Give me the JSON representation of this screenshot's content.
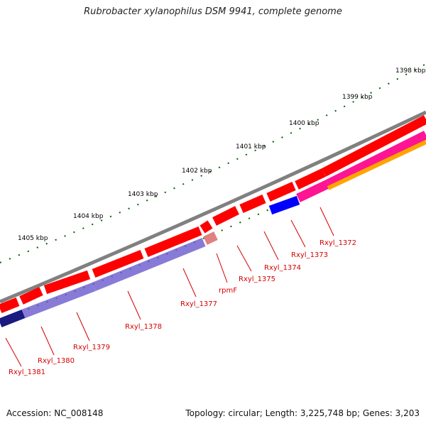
{
  "title": "Rubrobacter xylanophilus DSM 9941, complete genome",
  "accession": "Accession: NC_008148",
  "topology": "Topology: circular; Length: 3,225,748 bp; Genes: 3,203",
  "scale_labels": [
    "1398 kbp",
    "1399 kbp",
    "1400 kbp",
    "1401 kbp",
    "1402 kbp",
    "1403 kbp",
    "1404 kbp",
    "1405 kbp"
  ],
  "gene_labels": [
    "Rxyl_1372",
    "Rxyl_1373",
    "Rxyl_1374",
    "Rxyl_1375",
    "rpmF",
    "Rxyl_1377",
    "Rxyl_1378",
    "Rxyl_1379",
    "Rxyl_1380",
    "Rxyl_1381"
  ],
  "colors": {
    "backbone": "#808080",
    "forward_cds": "#ff0000",
    "reverse_cds_purple": "#6a5acd",
    "reverse_cds_blue": "#0000ff",
    "pink_cds": "#ff1493",
    "orange_cds": "#ffa500",
    "rpmF_cds": "#e08080",
    "scale_ticks": "#006400",
    "label_color": "#d40000"
  }
}
